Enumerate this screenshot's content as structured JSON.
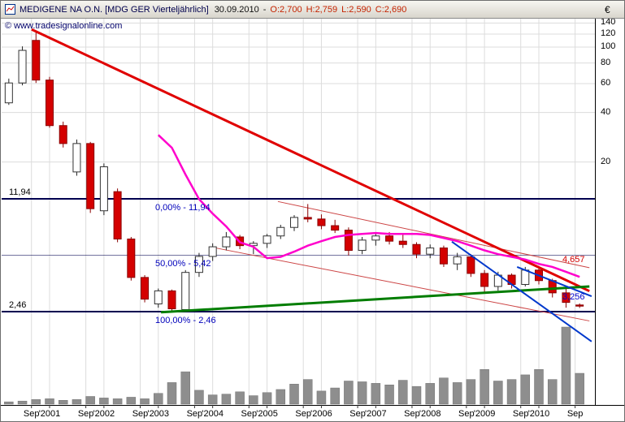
{
  "header": {
    "instrument": "MEDIGENE NA O.N. [MDG GER  Vierteljährlich]",
    "date": "30.09.2010",
    "separator": "-",
    "open_label": "O:2,700",
    "high_label": "H:2,759",
    "low_label": "L:2,590",
    "close_label": "C:2,690"
  },
  "copyright": "© www.tradesignalonline.com",
  "chart_data": {
    "type": "candlestick",
    "title": "MEDIGENE NA O.N.",
    "symbol": "MDG GER",
    "interval": "Vierteljährlich",
    "last_bar": {
      "date": "30.09.2010",
      "open": 2.7,
      "high": 2.759,
      "low": 2.59,
      "close": 2.69
    },
    "y_axis": {
      "currency": "€",
      "scale": "log",
      "tick_labels": [
        "140",
        "120",
        "100",
        "80",
        "60",
        "40",
        "20"
      ],
      "tick_values": [
        140,
        120,
        100,
        80,
        60,
        40,
        20
      ],
      "range": [
        1.6,
        150
      ]
    },
    "x_axis": {
      "ticks": [
        {
          "t": 2000.667,
          "label": "Sep"
        },
        {
          "t": 2001.0,
          "label": "'2001"
        },
        {
          "t": 2001.667,
          "label": "Sep"
        },
        {
          "t": 2002.0,
          "label": "'2002"
        },
        {
          "t": 2002.667,
          "label": "Sep"
        },
        {
          "t": 2003.0,
          "label": "'2003"
        },
        {
          "t": 2003.667,
          "label": "Sep"
        },
        {
          "t": 2004.0,
          "label": "'2004"
        },
        {
          "t": 2004.667,
          "label": "Sep"
        },
        {
          "t": 2005.0,
          "label": "'2005"
        },
        {
          "t": 2005.667,
          "label": "Sep"
        },
        {
          "t": 2006.0,
          "label": "'2006"
        },
        {
          "t": 2006.667,
          "label": "Sep"
        },
        {
          "t": 2007.0,
          "label": "'2007"
        },
        {
          "t": 2007.667,
          "label": "Sep"
        },
        {
          "t": 2008.0,
          "label": "'2008"
        },
        {
          "t": 2008.667,
          "label": "Sep"
        },
        {
          "t": 2009.0,
          "label": "'2009"
        },
        {
          "t": 2009.667,
          "label": "Sep"
        },
        {
          "t": 2010.0,
          "label": "'2010"
        },
        {
          "t": 2010.667,
          "label": "Sep"
        }
      ]
    },
    "candles": [
      {
        "d": "2000-03",
        "o": 45.8,
        "h": 64.3,
        "l": 44.5,
        "c": 60.5
      },
      {
        "d": "2000-06",
        "o": 60.5,
        "h": 101.0,
        "l": 58.5,
        "c": 95.5
      },
      {
        "d": "2000-09",
        "o": 109.8,
        "h": 123.8,
        "l": 60.5,
        "c": 63.0
      },
      {
        "d": "2000-12",
        "o": 63.0,
        "h": 65.9,
        "l": 32.3,
        "c": 33.3
      },
      {
        "d": "2001-03",
        "o": 33.3,
        "h": 35.2,
        "l": 24.5,
        "c": 25.9
      },
      {
        "d": "2001-06",
        "o": 17.4,
        "h": 27.4,
        "l": 16.5,
        "c": 25.9
      },
      {
        "d": "2001-09",
        "o": 25.9,
        "h": 26.5,
        "l": 9.8,
        "c": 10.4
      },
      {
        "d": "2001-12",
        "o": 10.1,
        "h": 19.6,
        "l": 9.5,
        "c": 18.7
      },
      {
        "d": "2002-03",
        "o": 13.2,
        "h": 13.8,
        "l": 6.5,
        "c": 6.8
      },
      {
        "d": "2002-06",
        "o": 6.8,
        "h": 7.0,
        "l": 3.8,
        "c": 3.97
      },
      {
        "d": "2002-09",
        "o": 3.97,
        "h": 4.1,
        "l": 2.8,
        "c": 2.93
      },
      {
        "d": "2002-12",
        "o": 2.74,
        "h": 3.4,
        "l": 2.6,
        "c": 3.29
      },
      {
        "d": "2003-03",
        "o": 3.29,
        "h": 3.35,
        "l": 2.48,
        "c": 2.56
      },
      {
        "d": "2003-06",
        "o": 2.53,
        "h": 4.4,
        "l": 2.5,
        "c": 4.26
      },
      {
        "d": "2003-09",
        "o": 4.26,
        "h": 5.6,
        "l": 4.0,
        "c": 5.33
      },
      {
        "d": "2003-12",
        "o": 5.33,
        "h": 6.4,
        "l": 5.0,
        "c": 6.1
      },
      {
        "d": "2004-03",
        "o": 6.1,
        "h": 7.5,
        "l": 5.8,
        "c": 7.0
      },
      {
        "d": "2004-06",
        "o": 7.0,
        "h": 7.2,
        "l": 5.9,
        "c": 6.2
      },
      {
        "d": "2004-09",
        "o": 6.2,
        "h": 6.6,
        "l": 5.5,
        "c": 6.4
      },
      {
        "d": "2004-12",
        "o": 6.4,
        "h": 7.3,
        "l": 6.0,
        "c": 7.1
      },
      {
        "d": "2005-03",
        "o": 7.1,
        "h": 8.3,
        "l": 6.8,
        "c": 8.0
      },
      {
        "d": "2005-06",
        "o": 8.0,
        "h": 9.5,
        "l": 7.6,
        "c": 9.2
      },
      {
        "d": "2005-09",
        "o": 9.2,
        "h": 11.1,
        "l": 8.6,
        "c": 9.0
      },
      {
        "d": "2005-12",
        "o": 9.0,
        "h": 9.6,
        "l": 7.8,
        "c": 8.2
      },
      {
        "d": "2006-03",
        "o": 8.2,
        "h": 8.9,
        "l": 7.4,
        "c": 7.7
      },
      {
        "d": "2006-06",
        "o": 7.7,
        "h": 8.0,
        "l": 5.4,
        "c": 5.8
      },
      {
        "d": "2006-09",
        "o": 5.8,
        "h": 7.0,
        "l": 5.5,
        "c": 6.7
      },
      {
        "d": "2006-12",
        "o": 6.7,
        "h": 7.4,
        "l": 6.2,
        "c": 7.1
      },
      {
        "d": "2007-03",
        "o": 7.1,
        "h": 7.5,
        "l": 6.3,
        "c": 6.6
      },
      {
        "d": "2007-06",
        "o": 6.6,
        "h": 7.2,
        "l": 6.0,
        "c": 6.3
      },
      {
        "d": "2007-09",
        "o": 6.3,
        "h": 6.5,
        "l": 5.2,
        "c": 5.5
      },
      {
        "d": "2007-12",
        "o": 5.5,
        "h": 6.3,
        "l": 5.2,
        "c": 6.0
      },
      {
        "d": "2008-03",
        "o": 6.0,
        "h": 6.2,
        "l": 4.6,
        "c": 4.8
      },
      {
        "d": "2008-06",
        "o": 4.8,
        "h": 5.6,
        "l": 4.4,
        "c": 5.3
      },
      {
        "d": "2008-09",
        "o": 5.3,
        "h": 5.5,
        "l": 4.0,
        "c": 4.2
      },
      {
        "d": "2008-12",
        "o": 4.2,
        "h": 4.4,
        "l": 3.2,
        "c": 3.5
      },
      {
        "d": "2009-03",
        "o": 3.5,
        "h": 4.3,
        "l": 3.3,
        "c": 4.1
      },
      {
        "d": "2009-06",
        "o": 4.1,
        "h": 4.2,
        "l": 3.4,
        "c": 3.6
      },
      {
        "d": "2009-09",
        "o": 3.6,
        "h": 4.6,
        "l": 3.5,
        "c": 4.4
      },
      {
        "d": "2009-12",
        "o": 4.4,
        "h": 4.5,
        "l": 3.6,
        "c": 3.8
      },
      {
        "d": "2010-03",
        "o": 3.8,
        "h": 3.9,
        "l": 3.0,
        "c": 3.2
      },
      {
        "d": "2010-06",
        "o": 3.2,
        "h": 3.4,
        "l": 2.6,
        "c": 2.8
      },
      {
        "d": "2010-09",
        "o": 2.7,
        "h": 2.759,
        "l": 2.59,
        "c": 2.69
      }
    ],
    "sma12": [
      null,
      null,
      null,
      null,
      null,
      null,
      null,
      null,
      null,
      null,
      null,
      29.2,
      24.4,
      16.8,
      11.9,
      9.7,
      8.1,
      6.5,
      6.1,
      5.2,
      5.3,
      5.7,
      6.2,
      6.6,
      7.0,
      7.2,
      7.3,
      7.4,
      7.3,
      7.3,
      7.3,
      7.2,
      6.9,
      6.6,
      6.2,
      5.8,
      5.5,
      5.3,
      5.1,
      4.8,
      4.6,
      4.3,
      4.0
    ],
    "volume": [
      3,
      4,
      6,
      7,
      5,
      6,
      10,
      8,
      7,
      9,
      7,
      14,
      28,
      42,
      18,
      12,
      13,
      16,
      11,
      15,
      19,
      26,
      32,
      17,
      21,
      30,
      29,
      27,
      25,
      31,
      23,
      27,
      34,
      28,
      32,
      45,
      30,
      32,
      38,
      45,
      32,
      100,
      40
    ],
    "fibonacci": [
      {
        "label": "0,00% - 11,94",
        "value": 11.94,
        "major": true
      },
      {
        "label": "50,00% - 5,42",
        "value": 5.42,
        "major": false
      },
      {
        "label": "100,00% - 2,46",
        "value": 2.46,
        "major": true
      }
    ],
    "left_price_labels": [
      {
        "text": "11,94",
        "value": 11.94
      },
      {
        "text": "2,46",
        "value": 2.46
      }
    ],
    "price_tags": [
      {
        "text": "4,657",
        "value": 4.657,
        "color": "#d40000",
        "side": "above"
      },
      {
        "text": "3,256",
        "value": 3.256,
        "color": "#0000cc",
        "side": "below"
      }
    ],
    "trendlines": [
      {
        "name": "primary-downtrend-line",
        "color": "#e00000",
        "width": 3,
        "points": [
          [
            2000.67,
            128
          ],
          [
            2010.93,
            3.28
          ]
        ]
      },
      {
        "name": "channel-upper-line",
        "color": "#cc4444",
        "width": 1,
        "points": [
          [
            2005.2,
            11.5
          ],
          [
            2010.93,
            4.55
          ]
        ]
      },
      {
        "name": "channel-lower-line",
        "color": "#cc4444",
        "width": 1,
        "points": [
          [
            2004.0,
            6.05
          ],
          [
            2010.93,
            2.16
          ]
        ]
      },
      {
        "name": "support-uptrend-line",
        "color": "#007d00",
        "width": 3,
        "points": [
          [
            2003.05,
            2.44
          ],
          [
            2010.93,
            3.5
          ]
        ]
      },
      {
        "name": "wedge-steep-blue-line",
        "color": "#0038cc",
        "width": 2,
        "points": [
          [
            2008.4,
            6.55
          ],
          [
            2010.97,
            1.62
          ]
        ]
      },
      {
        "name": "wedge-shallow-blue-line",
        "color": "#0038cc",
        "width": 2,
        "points": [
          [
            2009.6,
            4.6
          ],
          [
            2010.97,
            3.05
          ]
        ]
      }
    ],
    "colors": {
      "up_fill": "#ffffff",
      "up_stroke": "#333333",
      "down_fill": "#d40000",
      "down_stroke": "#8a0000",
      "sma": "#ff00cc",
      "volume": "#8e8e8e",
      "grid": "#dcdcdc",
      "fib": "#000050"
    }
  }
}
